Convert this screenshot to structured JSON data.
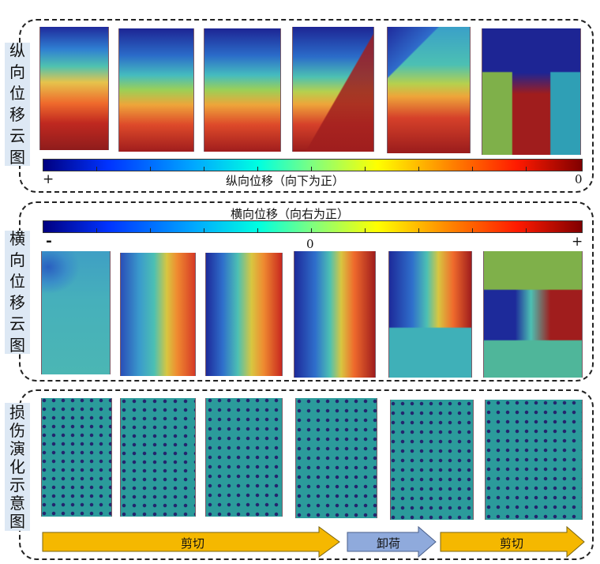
{
  "sections": {
    "vertical": {
      "label_chars": [
        "纵",
        "向",
        "位",
        "移",
        "云",
        "图"
      ],
      "colorbar_title": "纵向位移（向下为正）",
      "left_end": "+",
      "right_end": "0"
    },
    "horizontal": {
      "label_chars": [
        "横",
        "向",
        "位",
        "移",
        "云",
        "图"
      ],
      "colorbar_title": "横向位移（向右为正）",
      "left_end": "-",
      "mid": "0",
      "right_end": "+"
    },
    "damage": {
      "label_chars": [
        "损",
        "伤",
        "演",
        "化",
        "示",
        "意",
        "图"
      ]
    }
  },
  "stages": {
    "shear1": "剪切",
    "unload": "卸荷",
    "shear2": "剪切"
  },
  "colors": {
    "section_border": "#222222",
    "label_bg": "#dde8f4",
    "arrow_orange": "#f5b800",
    "arrow_blue": "#8faadc",
    "damage_teal": "#2b9b9b",
    "damage_navy": "#23256e"
  }
}
